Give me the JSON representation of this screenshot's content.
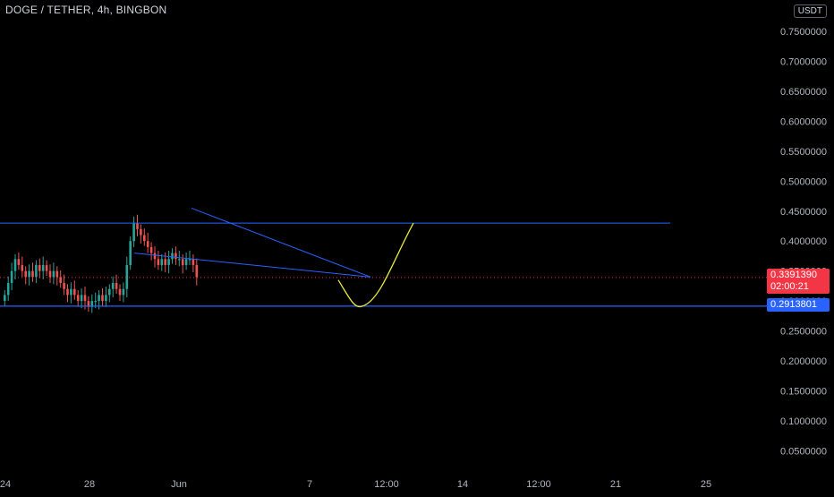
{
  "header": {
    "symbol_title": "DOGE / TETHER, 4h, BINGBON",
    "currency": "USDT"
  },
  "price_tags": {
    "current_price": "0.3391390",
    "countdown": "02:00:21",
    "support_price": "0.2913801"
  },
  "colors": {
    "background": "#000000",
    "candle_up": "#26a69a",
    "candle_down": "#ef5350",
    "trendline": "#2962ff",
    "projection": "#e8e83a",
    "current_price_tag": "#f23645",
    "support_price_tag": "#2962ff"
  },
  "chart_data": {
    "type": "candlestick",
    "symbol": "DOGE / TETHER",
    "interval": "4h",
    "exchange": "BINGBON",
    "quote_currency": "USDT",
    "x_tick_labels": [
      "24",
      "28",
      "Jun",
      "7",
      "12:00",
      "14",
      "12:00",
      "21",
      "25"
    ],
    "y_tick_labels": [
      "0.0500000",
      "0.1000000",
      "0.1500000",
      "0.2000000",
      "0.2500000",
      "0.3000000",
      "0.3500000",
      "0.4000000",
      "0.4500000",
      "0.5000000",
      "0.5500000",
      "0.6000000",
      "0.6500000",
      "0.7000000",
      "0.7500000"
    ],
    "y_ticks": [
      0.05,
      0.1,
      0.15,
      0.2,
      0.25,
      0.3,
      0.35,
      0.4,
      0.45,
      0.5,
      0.55,
      0.6,
      0.65,
      0.7,
      0.75
    ],
    "ylim": [
      0.0,
      0.77
    ],
    "current_price": 0.339139,
    "support_level": 0.2913801,
    "resistance_level": 0.43,
    "candle_closes": [
      0.31,
      0.33,
      0.35,
      0.37,
      0.36,
      0.35,
      0.34,
      0.35,
      0.34,
      0.36,
      0.35,
      0.36,
      0.35,
      0.34,
      0.35,
      0.34,
      0.33,
      0.32,
      0.31,
      0.32,
      0.31,
      0.3,
      0.31,
      0.3,
      0.29,
      0.3,
      0.3,
      0.31,
      0.3,
      0.31,
      0.32,
      0.33,
      0.32,
      0.31,
      0.32,
      0.36,
      0.4,
      0.43,
      0.42,
      0.41,
      0.4,
      0.39,
      0.38,
      0.37,
      0.36,
      0.37,
      0.36,
      0.37,
      0.38,
      0.37,
      0.37,
      0.36,
      0.37,
      0.37,
      0.36,
      0.34
    ],
    "annotations": [
      {
        "kind": "horizontal_line",
        "price": 0.43
      },
      {
        "kind": "horizontal_line",
        "price": 0.2913801
      },
      {
        "kind": "trendline",
        "from": [
          0.455
        ],
        "to": [
          0.34
        ]
      },
      {
        "kind": "trendline",
        "from": [
          0.38
        ],
        "to": [
          0.34
        ]
      },
      {
        "kind": "projection_curve",
        "low": 0.2913801,
        "high": 0.43
      }
    ]
  }
}
